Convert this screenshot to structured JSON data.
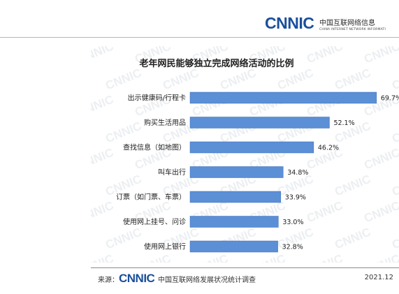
{
  "header": {
    "logo_text": "CNNIC",
    "org_name_cn": "中国互联网络信息",
    "org_name_en": "CHINA INTERNET NETWORK INFORMATI"
  },
  "watermark_text": "CNNIC",
  "chart_data": {
    "type": "bar",
    "orientation": "horizontal",
    "title": "老年网民能够独立完成网络活动的比例",
    "xlabel": "",
    "ylabel": "",
    "xlim": [
      0,
      70
    ],
    "grid": false,
    "categories": [
      "出示健康码/行程卡",
      "购买生活用品",
      "查找信息（如地图）",
      "叫车出行",
      "订票（如门票、车票）",
      "使用网上挂号、问诊",
      "使用网上银行"
    ],
    "values": [
      69.7,
      52.1,
      46.2,
      34.8,
      33.9,
      33.0,
      32.8
    ],
    "value_labels": [
      "69.7%",
      "52.1%",
      "46.2%",
      "34.8%",
      "33.9%",
      "33.0%",
      "32.8%"
    ],
    "bar_color": "#5b8fd6"
  },
  "footer": {
    "source_label": "来源：",
    "logo_text": "CNNIC",
    "source_text": "中国互联网络发展状况统计调查",
    "date": "2021.12"
  }
}
